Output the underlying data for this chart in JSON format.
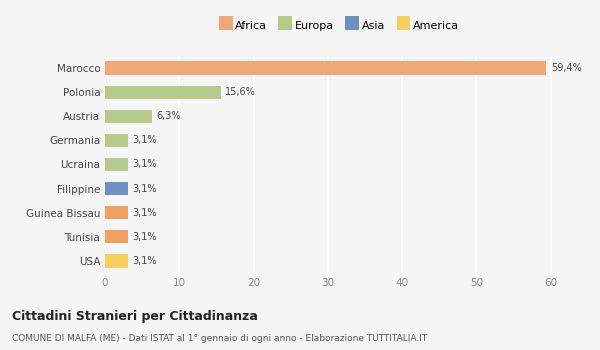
{
  "categories": [
    "Marocco",
    "Polonia",
    "Austria",
    "Germania",
    "Ucraina",
    "Filippine",
    "Guinea Bissau",
    "Tunisia",
    "USA"
  ],
  "values": [
    59.4,
    15.6,
    6.3,
    3.1,
    3.1,
    3.1,
    3.1,
    3.1,
    3.1
  ],
  "labels": [
    "59,4%",
    "15,6%",
    "6,3%",
    "3,1%",
    "3,1%",
    "3,1%",
    "3,1%",
    "3,1%",
    "3,1%"
  ],
  "colors": [
    "#F0A878",
    "#B5C98A",
    "#B5C98A",
    "#B5C98A",
    "#B5C98A",
    "#6F8FC0",
    "#F0A060",
    "#F0A060",
    "#F5D060"
  ],
  "legend": [
    {
      "label": "Africa",
      "color": "#F0A878"
    },
    {
      "label": "Europa",
      "color": "#B5C98A"
    },
    {
      "label": "Asia",
      "color": "#6F8FC0"
    },
    {
      "label": "America",
      "color": "#F5D060"
    }
  ],
  "xlim": [
    0,
    63
  ],
  "xticks": [
    0,
    10,
    20,
    30,
    40,
    50,
    60
  ],
  "title": "Cittadini Stranieri per Cittadinanza",
  "subtitle": "COMUNE DI MALFA (ME) - Dati ISTAT al 1° gennaio di ogni anno - Elaborazione TUTTITALIA.IT",
  "bg_color": "#f5f5f5",
  "grid_color": "#ffffff",
  "bar_height": 0.55
}
